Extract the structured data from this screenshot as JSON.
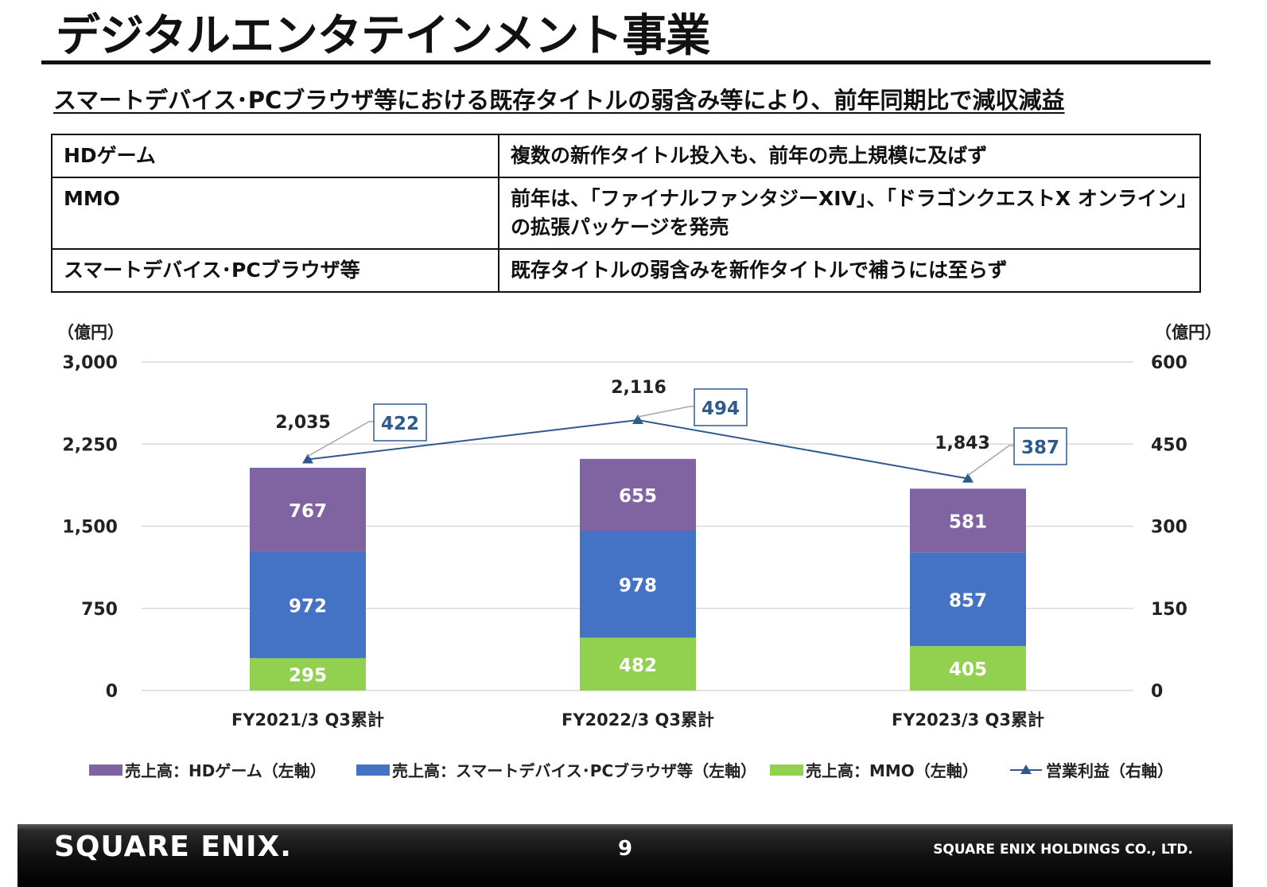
{
  "header": {
    "title": "デジタルエンタテインメント事業",
    "subtitle": "スマートデバイス･PCブラウザ等における既存タイトルの弱含み等により、前年同期比で減収減益"
  },
  "info_table": [
    {
      "segment": "HDゲーム",
      "note": "複数の新作タイトル投入も、前年の売上規模に及ばず"
    },
    {
      "segment": "MMO",
      "note": "前年は、「ファイナルファンタジーXIV」、「ドラゴンクエストX オンライン」の拡張パッケージを発売"
    },
    {
      "segment": "スマートデバイス･PCブラウザ等",
      "note": "既存タイトルの弱含みを新作タイトルで補うには至らず"
    }
  ],
  "chart_data": {
    "type": "bar",
    "stacked": true,
    "categories": [
      "FY2021/3 Q3累計",
      "FY2022/3 Q3累計",
      "FY2023/3 Q3累計"
    ],
    "series": [
      {
        "name": "売上高：MMO（左軸）",
        "axis": "left",
        "color": "#92d050",
        "values": [
          295,
          482,
          405
        ]
      },
      {
        "name": "売上高：スマートデバイス･PCブラウザ等（左軸）",
        "axis": "left",
        "color": "#4472c4",
        "values": [
          972,
          978,
          857
        ]
      },
      {
        "name": "売上高：HDゲーム（左軸）",
        "axis": "left",
        "color": "#8064a2",
        "values": [
          767,
          655,
          581
        ]
      }
    ],
    "totals": [
      "2,035",
      "2,116",
      "1,843"
    ],
    "line_series": {
      "name": "営業利益（右軸）",
      "axis": "right",
      "color": "#2e5a8e",
      "values": [
        422,
        494,
        387
      ]
    },
    "left_axis": {
      "unit": "（億円）",
      "ylim": [
        0,
        3000
      ],
      "ticks": [
        "0",
        "750",
        "1,500",
        "2,250",
        "3,000"
      ]
    },
    "right_axis": {
      "unit": "（億円）",
      "ylim": [
        0,
        600
      ],
      "ticks": [
        "0",
        "150",
        "300",
        "450",
        "600"
      ]
    },
    "legend_order": [
      "売上高：HDゲーム（左軸）",
      "売上高：スマートデバイス･PCブラウザ等（左軸）",
      "売上高：MMO（左軸）",
      "営業利益（右軸）"
    ],
    "legend_position": "bottom",
    "grid": true
  },
  "footer": {
    "logo": "SQUARE ENIX.",
    "page_number": "9",
    "company": "SQUARE ENIX HOLDINGS CO., LTD."
  }
}
